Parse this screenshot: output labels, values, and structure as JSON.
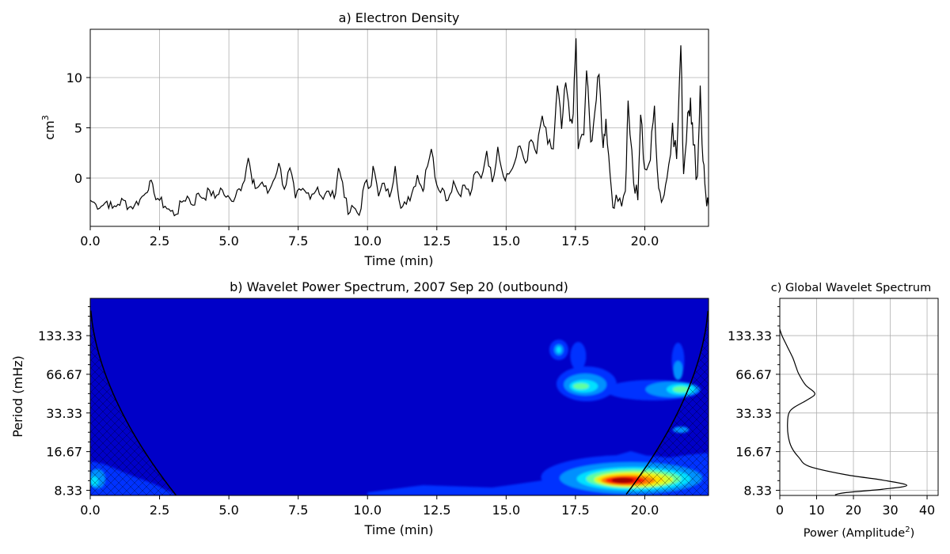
{
  "chart_data": [
    {
      "id": "a",
      "type": "line",
      "title": "a) Electron Density",
      "xlabel": "Time (min)",
      "ylabel": "cm",
      "ylabel_superscript": "3",
      "xlim": [
        0,
        22.3
      ],
      "ylim": [
        -4.8,
        14.8
      ],
      "xticks": [
        0,
        2.5,
        5,
        7.5,
        10,
        12.5,
        15,
        17.5,
        20
      ],
      "xtick_labels": [
        "0.0",
        "2.5",
        "5.0",
        "7.5",
        "10.0",
        "12.5",
        "15.0",
        "17.5",
        "20.0"
      ],
      "yticks": [
        0,
        5,
        10
      ],
      "ytick_labels": [
        "0",
        "5",
        "10"
      ],
      "grid": true,
      "color": "#000000",
      "keypoints": [
        [
          0,
          -2.2
        ],
        [
          0.2,
          -2.6
        ],
        [
          0.4,
          -2.8
        ],
        [
          0.6,
          -2.3
        ],
        [
          0.8,
          -3.0
        ],
        [
          1.0,
          -2.6
        ],
        [
          1.2,
          -2.2
        ],
        [
          1.4,
          -2.9
        ],
        [
          1.6,
          -2.7
        ],
        [
          1.8,
          -2.1
        ],
        [
          2.0,
          -1.5
        ],
        [
          2.15,
          -0.3
        ],
        [
          2.3,
          -1.5
        ],
        [
          2.5,
          -2.2
        ],
        [
          2.7,
          -2.8
        ],
        [
          2.9,
          -3.3
        ],
        [
          3.1,
          -3.6
        ],
        [
          3.3,
          -2.4
        ],
        [
          3.5,
          -1.8
        ],
        [
          3.7,
          -2.7
        ],
        [
          3.9,
          -1.5
        ],
        [
          4.1,
          -2.0
        ],
        [
          4.3,
          -1.2
        ],
        [
          4.5,
          -2.0
        ],
        [
          4.7,
          -1.0
        ],
        [
          4.9,
          -1.9
        ],
        [
          5.1,
          -2.3
        ],
        [
          5.3,
          -1.2
        ],
        [
          5.5,
          -0.6
        ],
        [
          5.7,
          2.0
        ],
        [
          5.85,
          -0.5
        ],
        [
          6.0,
          -1.0
        ],
        [
          6.2,
          -0.4
        ],
        [
          6.4,
          -1.5
        ],
        [
          6.6,
          -0.3
        ],
        [
          6.8,
          1.5
        ],
        [
          7.0,
          -1.1
        ],
        [
          7.2,
          1.0
        ],
        [
          7.4,
          -2.0
        ],
        [
          7.6,
          -1.2
        ],
        [
          7.8,
          -1.5
        ],
        [
          8.0,
          -1.6
        ],
        [
          8.2,
          -0.9
        ],
        [
          8.4,
          -2.1
        ],
        [
          8.6,
          -1.3
        ],
        [
          8.8,
          -2.0
        ],
        [
          8.95,
          1.0
        ],
        [
          9.1,
          -0.4
        ],
        [
          9.3,
          -3.6
        ],
        [
          9.5,
          -2.9
        ],
        [
          9.7,
          -3.7
        ],
        [
          9.9,
          -0.5
        ],
        [
          10.1,
          -0.9
        ],
        [
          10.2,
          1.2
        ],
        [
          10.4,
          -1.8
        ],
        [
          10.6,
          -0.5
        ],
        [
          10.8,
          -1.9
        ],
        [
          11.0,
          1.2
        ],
        [
          11.2,
          -3.0
        ],
        [
          11.4,
          -2.6
        ],
        [
          11.6,
          -1.5
        ],
        [
          11.8,
          0.3
        ],
        [
          12.0,
          -1.3
        ],
        [
          12.1,
          0.8
        ],
        [
          12.3,
          2.9
        ],
        [
          12.5,
          -0.7
        ],
        [
          12.7,
          -1.0
        ],
        [
          12.9,
          -2.2
        ],
        [
          13.1,
          -0.3
        ],
        [
          13.3,
          -1.6
        ],
        [
          13.5,
          -0.7
        ],
        [
          13.7,
          -1.7
        ],
        [
          13.9,
          0.6
        ],
        [
          14.1,
          0.0
        ],
        [
          14.3,
          2.7
        ],
        [
          14.5,
          -0.4
        ],
        [
          14.7,
          3.1
        ],
        [
          14.9,
          0.2
        ],
        [
          15.1,
          0.4
        ],
        [
          15.3,
          1.5
        ],
        [
          15.5,
          3.2
        ],
        [
          15.7,
          1.5
        ],
        [
          15.9,
          3.8
        ],
        [
          16.1,
          2.4
        ],
        [
          16.3,
          6.2
        ],
        [
          16.5,
          3.4
        ],
        [
          16.7,
          2.9
        ],
        [
          16.85,
          9.2
        ],
        [
          17.0,
          4.9
        ],
        [
          17.15,
          9.5
        ],
        [
          17.3,
          5.7
        ],
        [
          17.42,
          6.4
        ],
        [
          17.52,
          13.9
        ],
        [
          17.6,
          2.9
        ],
        [
          17.8,
          4.3
        ],
        [
          17.9,
          10.7
        ],
        [
          18.05,
          3.6
        ],
        [
          18.2,
          6.6
        ],
        [
          18.35,
          10.3
        ],
        [
          18.5,
          3.0
        ],
        [
          18.6,
          5.9
        ],
        [
          18.75,
          0.3
        ],
        [
          18.9,
          -3.0
        ],
        [
          19.1,
          -2.0
        ],
        [
          19.3,
          -1.3
        ],
        [
          19.4,
          7.7
        ],
        [
          19.6,
          -0.5
        ],
        [
          19.75,
          -2.2
        ],
        [
          19.85,
          6.3
        ],
        [
          20.0,
          0.9
        ],
        [
          20.2,
          1.8
        ],
        [
          20.35,
          7.2
        ],
        [
          20.5,
          -1.0
        ],
        [
          20.65,
          -2.1
        ],
        [
          20.8,
          0.0
        ],
        [
          21.0,
          5.5
        ],
        [
          21.15,
          1.9
        ],
        [
          21.3,
          13.2
        ],
        [
          21.4,
          0.4
        ],
        [
          21.55,
          6.5
        ],
        [
          21.65,
          8.0
        ],
        [
          21.75,
          3.3
        ],
        [
          21.9,
          0.2
        ],
        [
          22.0,
          9.2
        ],
        [
          22.1,
          1.7
        ],
        [
          22.2,
          -1.6
        ],
        [
          22.3,
          -2.7
        ]
      ]
    },
    {
      "id": "b",
      "type": "heatmap",
      "title": "b) Wavelet Power Spectrum, 2007 Sep 20 (outbound)",
      "xlabel": "Time (min)",
      "ylabel": "Period (mHz)",
      "xlim": [
        0,
        22.3
      ],
      "xticks": [
        0,
        2.5,
        5,
        7.5,
        10,
        12.5,
        15,
        17.5,
        20
      ],
      "xtick_labels": [
        "0.0",
        "2.5",
        "5.0",
        "7.5",
        "10.0",
        "12.5",
        "15.0",
        "17.5",
        "20.0"
      ],
      "yticks": [
        133.33,
        66.67,
        33.33,
        16.67,
        8.33
      ],
      "ytick_labels": [
        "133.33",
        "66.67",
        "33.33",
        "16.67",
        "8.33"
      ],
      "colormap": [
        "#00007f",
        "#0000c8",
        "#0030ff",
        "#0090ff",
        "#00e0ff",
        "#60ffa0",
        "#d0ff30",
        "#ffe000",
        "#ff8000",
        "#ff1800",
        "#a00000"
      ],
      "peaks": [
        {
          "time": 19.4,
          "period_mhz": 9.8,
          "level": 10
        },
        {
          "time": 17.8,
          "period_mhz": 48,
          "level": 5
        },
        {
          "time": 21.3,
          "period_mhz": 45,
          "level": 5
        },
        {
          "time": 16.9,
          "period_mhz": 95,
          "level": 4
        },
        {
          "time": 12.0,
          "period_mhz": 9.5,
          "level": 2
        },
        {
          "time": 0.3,
          "period_mhz": 9.8,
          "level": 3
        }
      ],
      "cone_of_influence": true
    },
    {
      "id": "c",
      "type": "line",
      "title": "c) Global Wavelet Spectrum",
      "xlabel": "Power (Amplitude",
      "xlabel_superscript": "2",
      "xlabel_suffix": ")",
      "xlim": [
        0,
        43
      ],
      "xticks": [
        0,
        10,
        20,
        30,
        40
      ],
      "xtick_labels": [
        "0",
        "10",
        "20",
        "30",
        "40"
      ],
      "yticks": [
        133.33,
        66.67,
        33.33,
        16.67,
        8.33
      ],
      "ytick_labels": [
        "133.33",
        "66.67",
        "33.33",
        "16.67",
        "8.33"
      ],
      "grid": true,
      "color": "#000000",
      "profile": [
        [
          0,
          150
        ],
        [
          0.6,
          133.33
        ],
        [
          2.0,
          110
        ],
        [
          3.5,
          90
        ],
        [
          4.5,
          75
        ],
        [
          5.2,
          66.67
        ],
        [
          7.0,
          55
        ],
        [
          9.5,
          47.5
        ],
        [
          8.0,
          43
        ],
        [
          4.0,
          37
        ],
        [
          2.5,
          33.33
        ],
        [
          2.1,
          28
        ],
        [
          2.3,
          22
        ],
        [
          3.2,
          18
        ],
        [
          5.2,
          15
        ],
        [
          8.0,
          12.8
        ],
        [
          18.0,
          11.0
        ],
        [
          28.0,
          10.0
        ],
        [
          34.5,
          9.1
        ],
        [
          28.0,
          8.5
        ],
        [
          18.0,
          8.0
        ],
        [
          15.0,
          7.7
        ]
      ]
    }
  ]
}
